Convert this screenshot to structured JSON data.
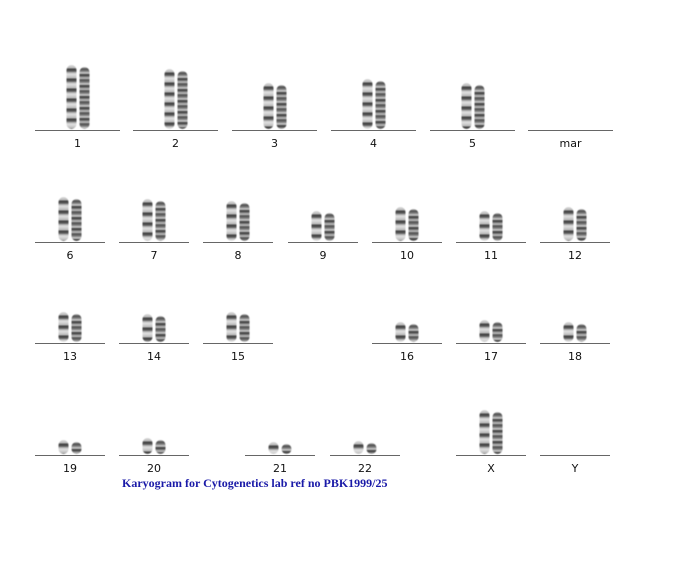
{
  "caption": "Karyogram for Cytogenetics lab ref no PBK1999/25",
  "caption_color": "#1a1aa8",
  "rows": [
    [
      {
        "label": "1",
        "present": true
      },
      {
        "label": "2",
        "present": true
      },
      {
        "label": "3",
        "present": true
      },
      {
        "label": "4",
        "present": true
      },
      {
        "label": "5",
        "present": true
      },
      {
        "label": "mar",
        "present": false
      }
    ],
    [
      {
        "label": "6",
        "present": true
      },
      {
        "label": "7",
        "present": true
      },
      {
        "label": "8",
        "present": true
      },
      {
        "label": "9",
        "present": true
      },
      {
        "label": "10",
        "present": true
      },
      {
        "label": "11",
        "present": true
      },
      {
        "label": "12",
        "present": true
      }
    ],
    [
      {
        "label": "13",
        "present": true
      },
      {
        "label": "14",
        "present": true
      },
      {
        "label": "15",
        "present": true
      },
      {
        "label": "16",
        "present": true
      },
      {
        "label": "17",
        "present": true
      },
      {
        "label": "18",
        "present": true
      }
    ],
    [
      {
        "label": "19",
        "present": true
      },
      {
        "label": "20",
        "present": true
      },
      {
        "label": "21",
        "present": true
      },
      {
        "label": "22",
        "present": true
      },
      {
        "label": "X",
        "present": true
      },
      {
        "label": "Y",
        "present": false
      }
    ]
  ]
}
